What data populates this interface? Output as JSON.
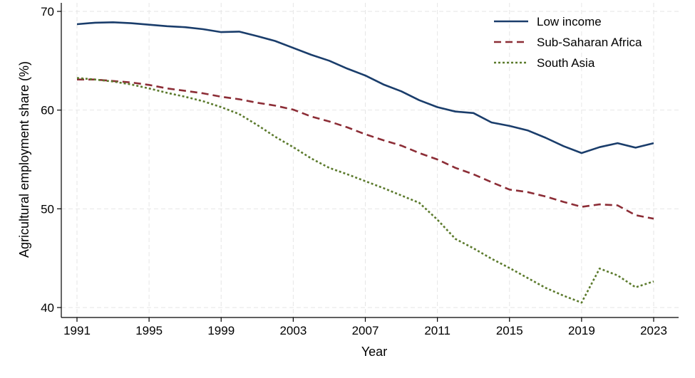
{
  "chart_data": {
    "type": "line",
    "xlabel": "Year",
    "ylabel": "Agricultural employment share (%)",
    "xlim": [
      1991,
      2023
    ],
    "ylim": [
      40,
      70
    ],
    "x_ticks": [
      1991,
      1995,
      1999,
      2003,
      2007,
      2011,
      2015,
      2019,
      2023
    ],
    "y_ticks": [
      40,
      50,
      60,
      70
    ],
    "grid": true,
    "legend_position": "top-right",
    "x": [
      1991,
      1992,
      1993,
      1994,
      1995,
      1996,
      1997,
      1998,
      1999,
      2000,
      2001,
      2002,
      2003,
      2004,
      2005,
      2006,
      2007,
      2008,
      2009,
      2010,
      2011,
      2012,
      2013,
      2014,
      2015,
      2016,
      2017,
      2018,
      2019,
      2020,
      2021,
      2022,
      2023
    ],
    "series": [
      {
        "name": "Low income",
        "color": "#1a3d6b",
        "dash": "solid",
        "values": [
          68.7,
          68.85,
          68.9,
          68.8,
          68.65,
          68.5,
          68.4,
          68.2,
          67.9,
          67.95,
          67.5,
          67.0,
          66.3,
          65.6,
          65.0,
          64.2,
          63.5,
          62.6,
          61.9,
          61.0,
          60.3,
          59.85,
          59.7,
          58.75,
          58.4,
          57.95,
          57.2,
          56.35,
          55.65,
          56.25,
          56.65,
          56.2,
          56.65
        ]
      },
      {
        "name": "Sub-Saharan Africa",
        "color": "#8c2d36",
        "dash": "dashed",
        "values": [
          63.1,
          63.1,
          62.95,
          62.8,
          62.55,
          62.2,
          61.95,
          61.7,
          61.35,
          61.1,
          60.75,
          60.45,
          60.05,
          59.35,
          58.85,
          58.25,
          57.55,
          56.95,
          56.4,
          55.65,
          55.0,
          54.15,
          53.5,
          52.7,
          51.95,
          51.7,
          51.25,
          50.7,
          50.2,
          50.45,
          50.35,
          49.35,
          49.0
        ]
      },
      {
        "name": "South Asia",
        "color": "#5b7a2c",
        "dash": "dotted",
        "values": [
          63.25,
          63.1,
          62.9,
          62.6,
          62.2,
          61.75,
          61.35,
          60.9,
          60.3,
          59.6,
          58.5,
          57.3,
          56.25,
          55.1,
          54.15,
          53.5,
          52.8,
          52.1,
          51.35,
          50.6,
          48.9,
          46.95,
          46.0,
          44.95,
          44.0,
          43.0,
          42.0,
          41.2,
          40.5,
          43.95,
          43.25,
          42.05,
          42.65
        ]
      }
    ]
  }
}
